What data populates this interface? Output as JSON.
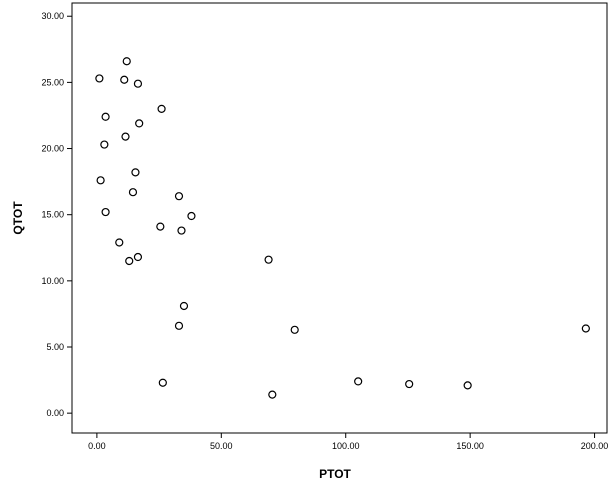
{
  "chart_data": {
    "type": "scatter",
    "title": "",
    "xlabel": "PTOT",
    "ylabel": "QTOT",
    "xlim": [
      -10,
      205
    ],
    "ylim": [
      -1.5,
      31
    ],
    "xticks": [
      0,
      50,
      100,
      150,
      200
    ],
    "yticks": [
      0,
      5,
      10,
      15,
      20,
      25,
      30
    ],
    "xtick_labels": [
      "0.00",
      "50.00",
      "100.00",
      "150.00",
      "200.00"
    ],
    "ytick_labels": [
      "0.00",
      "5.00",
      "10.00",
      "15.00",
      "20.00",
      "25.00",
      "30.00"
    ],
    "grid": false,
    "marker": "open-circle",
    "points": [
      {
        "x": 1.0,
        "y": 25.3
      },
      {
        "x": 12.0,
        "y": 26.6
      },
      {
        "x": 11.0,
        "y": 25.2
      },
      {
        "x": 16.5,
        "y": 24.9
      },
      {
        "x": 3.5,
        "y": 22.4
      },
      {
        "x": 26.0,
        "y": 23.0
      },
      {
        "x": 17.0,
        "y": 21.9
      },
      {
        "x": 11.5,
        "y": 20.9
      },
      {
        "x": 3.0,
        "y": 20.3
      },
      {
        "x": 1.5,
        "y": 17.6
      },
      {
        "x": 15.5,
        "y": 18.2
      },
      {
        "x": 14.5,
        "y": 16.7
      },
      {
        "x": 33.0,
        "y": 16.4
      },
      {
        "x": 3.5,
        "y": 15.2
      },
      {
        "x": 38.0,
        "y": 14.9
      },
      {
        "x": 25.5,
        "y": 14.1
      },
      {
        "x": 34.0,
        "y": 13.8
      },
      {
        "x": 9.0,
        "y": 12.9
      },
      {
        "x": 16.5,
        "y": 11.8
      },
      {
        "x": 13.0,
        "y": 11.5
      },
      {
        "x": 69.0,
        "y": 11.6
      },
      {
        "x": 35.0,
        "y": 8.1
      },
      {
        "x": 33.0,
        "y": 6.6
      },
      {
        "x": 79.5,
        "y": 6.3
      },
      {
        "x": 196.5,
        "y": 6.4
      },
      {
        "x": 26.5,
        "y": 2.3
      },
      {
        "x": 105.0,
        "y": 2.4
      },
      {
        "x": 125.5,
        "y": 2.2
      },
      {
        "x": 149.0,
        "y": 2.1
      },
      {
        "x": 70.5,
        "y": 1.4
      }
    ]
  }
}
